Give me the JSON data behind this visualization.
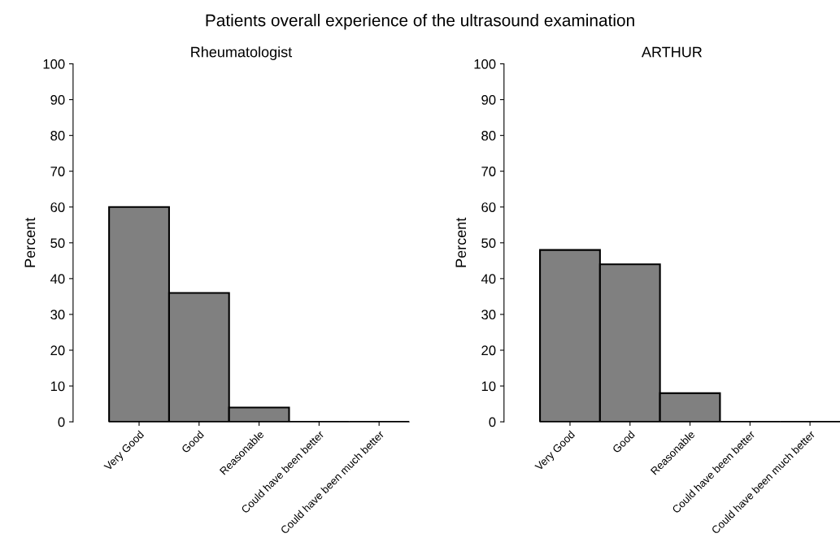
{
  "chart_data": [
    {
      "type": "bar",
      "title": "Patients overall experience of the ultrasound examination",
      "subtitle": "Rheumatologist",
      "ylabel": "Percent",
      "categories": [
        "Very Good",
        "Good",
        "Reasonable",
        "Could have been better",
        "Could have been much better"
      ],
      "values": [
        60,
        36,
        4,
        0,
        0
      ],
      "color": "#808080",
      "ylim": [
        0,
        100
      ],
      "yticks": [
        0,
        10,
        20,
        30,
        40,
        50,
        60,
        70,
        80,
        90,
        100
      ],
      "grid": false,
      "legend": false
    },
    {
      "type": "bar",
      "subtitle": "ARTHUR",
      "ylabel": "Percent",
      "categories": [
        "Very Good",
        "Good",
        "Reasonable",
        "Could have been better",
        "Could have been much better"
      ],
      "values": [
        48,
        44,
        8,
        0,
        0
      ],
      "color": "#808080",
      "ylim": [
        0,
        100
      ],
      "yticks": [
        0,
        10,
        20,
        30,
        40,
        50,
        60,
        70,
        80,
        90,
        100
      ],
      "grid": false,
      "legend": false
    }
  ]
}
